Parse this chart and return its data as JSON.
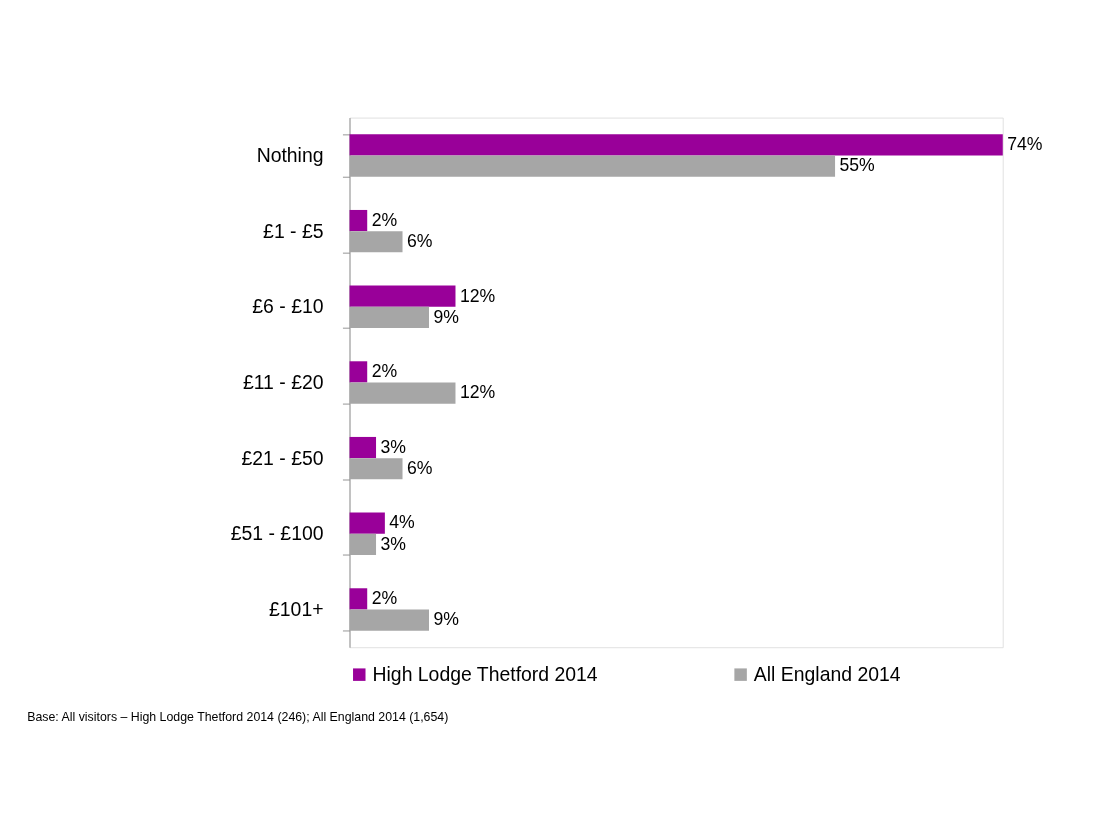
{
  "chart_data": {
    "type": "bar",
    "orientation": "horizontal",
    "categories": [
      "Nothing",
      "£1 - £5",
      "£6 - £10",
      "£11 - £20",
      "£21 - £50",
      "£51 - £100",
      "£101+"
    ],
    "series": [
      {
        "name": "High Lodge Thetford 2014",
        "color": "#990099",
        "values": [
          74,
          2,
          12,
          2,
          3,
          4,
          2
        ],
        "value_labels": [
          "74%",
          "2%",
          "12%",
          "2%",
          "3%",
          "4%",
          "2%"
        ]
      },
      {
        "name": "All England 2014",
        "color": "#a6a6a6",
        "values": [
          55,
          6,
          9,
          12,
          6,
          3,
          9
        ],
        "value_labels": [
          "55%",
          "6%",
          "9%",
          "12%",
          "6%",
          "3%",
          "9%"
        ]
      }
    ],
    "legend": "bottom",
    "grid": false,
    "annotations": [
      "Base: All visitors – High Lodge Thetford 2014 (246); All England 2014 (1,654)"
    ]
  }
}
